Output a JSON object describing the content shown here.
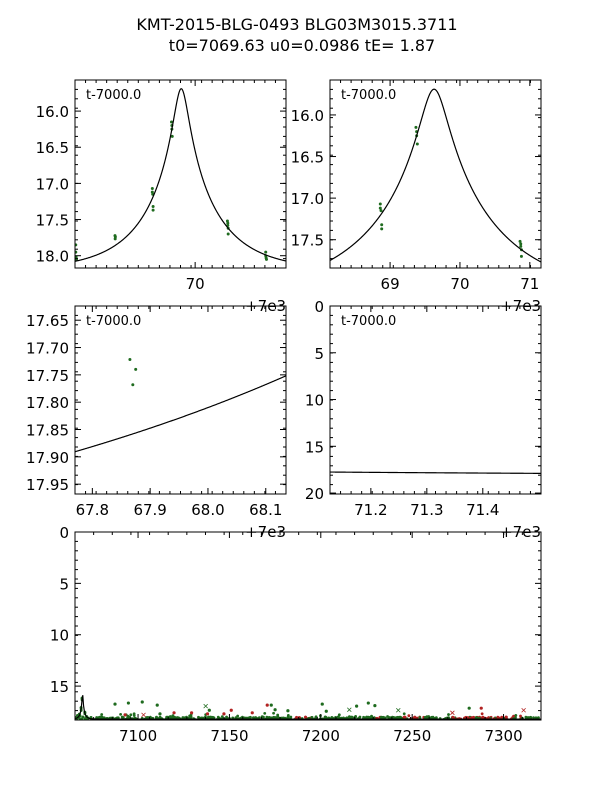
{
  "chart_data": {
    "type": "scatter",
    "title_line1": "KMT-2015-BLG-0493 BLG03M3015.3711",
    "title_line2": "t0=7069.63 u0=0.0986 tE=   1.87",
    "model": {
      "t0_rel": 69.63,
      "u0": 0.0986,
      "tE": 1.87,
      "base_mag": 18.21,
      "fs": 1.0
    },
    "colors": {
      "obs": "#1f6b1f",
      "obs_alt": "#b22222",
      "model": "#000000"
    },
    "panels": [
      {
        "id": "zoom-wide",
        "label": "t-7000.0",
        "offset_text": "+7e3",
        "xlim": [
          66.8,
          72.42
        ],
        "ylim": [
          18.17,
          15.57
        ],
        "xticks": [
          {
            "v": 70,
            "t": "70"
          }
        ],
        "yticks": [
          {
            "v": 16.0,
            "t": "16.0"
          },
          {
            "v": 16.5,
            "t": "16.5"
          },
          {
            "v": 17.0,
            "t": "17.0"
          },
          {
            "v": 17.5,
            "t": "17.5"
          },
          {
            "v": 18.0,
            "t": "18.0"
          }
        ]
      },
      {
        "id": "zoom-peak",
        "label": "t-7000.0",
        "offset_text": "+7e3",
        "xlim": [
          68.14,
          71.16
        ],
        "ylim": [
          17.84,
          15.58
        ],
        "xticks": [
          {
            "v": 69,
            "t": "69"
          },
          {
            "v": 70,
            "t": "70"
          },
          {
            "v": 71,
            "t": "71"
          }
        ],
        "yticks": [
          {
            "v": 16.0,
            "t": "16.0"
          },
          {
            "v": 16.5,
            "t": "16.5"
          },
          {
            "v": 17.0,
            "t": "17.0"
          },
          {
            "v": 17.5,
            "t": "17.5"
          }
        ]
      },
      {
        "id": "zoom-pre",
        "label": "t-7000.0",
        "offset_text": "+7e3",
        "xlim": [
          67.77,
          68.135
        ],
        "ylim": [
          17.968,
          17.624
        ],
        "xticks": [
          {
            "v": 67.8,
            "t": "67.8"
          },
          {
            "v": 67.9,
            "t": "67.9"
          },
          {
            "v": 68.0,
            "t": "68.0"
          },
          {
            "v": 68.1,
            "t": "68.1"
          }
        ],
        "yticks": [
          {
            "v": 17.65,
            "t": "17.65"
          },
          {
            "v": 17.7,
            "t": "17.70"
          },
          {
            "v": 17.75,
            "t": "17.75"
          },
          {
            "v": 17.8,
            "t": "17.80"
          },
          {
            "v": 17.85,
            "t": "17.85"
          },
          {
            "v": 17.9,
            "t": "17.90"
          },
          {
            "v": 17.95,
            "t": "17.95"
          }
        ]
      },
      {
        "id": "zoom-post",
        "label": "t-7000.0",
        "offset_text": "+7e3",
        "xlim": [
          71.127,
          71.504
        ],
        "ylim": [
          20.1,
          0
        ],
        "xticks": [
          {
            "v": 71.2,
            "t": "71.2"
          },
          {
            "v": 71.3,
            "t": "71.3"
          },
          {
            "v": 71.4,
            "t": "71.4"
          }
        ],
        "yticks": [
          {
            "v": 0,
            "t": "0"
          },
          {
            "v": 5,
            "t": "5"
          },
          {
            "v": 10,
            "t": "10"
          },
          {
            "v": 15,
            "t": "15"
          },
          {
            "v": 20,
            "t": "20"
          }
        ]
      },
      {
        "id": "full",
        "label": "",
        "offset_text": "",
        "xlim": [
          7065.5,
          7320.5
        ],
        "ylim": [
          18.3,
          0
        ],
        "t_offset": 7000,
        "xticks": [
          {
            "v": 7100,
            "t": "7100"
          },
          {
            "v": 7150,
            "t": "7150"
          },
          {
            "v": 7200,
            "t": "7200"
          },
          {
            "v": 7250,
            "t": "7250"
          },
          {
            "v": 7300,
            "t": "7300"
          }
        ],
        "yticks": [
          {
            "v": 0,
            "t": "0"
          },
          {
            "v": 5,
            "t": "5"
          },
          {
            "v": 10,
            "t": "10"
          },
          {
            "v": 15,
            "t": "15"
          }
        ]
      }
    ],
    "observations_rel": [
      [
        66.82,
        17.85
      ],
      [
        66.82,
        17.95
      ],
      [
        66.83,
        18.02
      ],
      [
        66.84,
        18.05
      ],
      [
        67.865,
        17.722
      ],
      [
        67.875,
        17.74
      ],
      [
        67.87,
        17.768
      ],
      [
        68.86,
        17.07
      ],
      [
        68.86,
        17.12
      ],
      [
        68.87,
        17.15
      ],
      [
        68.88,
        17.32
      ],
      [
        68.88,
        17.37
      ],
      [
        69.37,
        16.15
      ],
      [
        69.38,
        16.2
      ],
      [
        69.38,
        16.25
      ],
      [
        69.39,
        16.35
      ],
      [
        70.86,
        17.52
      ],
      [
        70.87,
        17.55
      ],
      [
        70.87,
        17.58
      ],
      [
        70.88,
        17.62
      ],
      [
        70.88,
        17.7
      ],
      [
        71.88,
        17.95
      ],
      [
        71.88,
        18.0
      ],
      [
        71.89,
        18.03
      ],
      [
        71.9,
        18.05
      ]
    ],
    "outliers_full": [
      {
        "t": 7087.4,
        "m": 16.75,
        "c": "obs",
        "mk": "dot"
      },
      {
        "t": 7094.7,
        "m": 16.65,
        "c": "obs",
        "mk": "dot"
      },
      {
        "t": 7102.3,
        "m": 16.55,
        "c": "obs",
        "mk": "dot"
      },
      {
        "t": 7110.5,
        "m": 16.85,
        "c": "obs",
        "mk": "dot"
      },
      {
        "t": 7172.9,
        "m": 16.85,
        "c": "obs",
        "mk": "dot"
      },
      {
        "t": 7200.8,
        "m": 16.75,
        "c": "obs",
        "mk": "dot"
      },
      {
        "t": 7219.6,
        "m": 16.95,
        "c": "obs",
        "mk": "dot"
      },
      {
        "t": 7226.0,
        "m": 16.65,
        "c": "obs",
        "mk": "dot"
      },
      {
        "t": 7229.6,
        "m": 16.9,
        "c": "obs",
        "mk": "dot"
      },
      {
        "t": 7281.2,
        "m": 17.15,
        "c": "obs",
        "mk": "dot"
      },
      {
        "t": 7112,
        "m": 17.7,
        "c": "obs",
        "mk": "dot"
      },
      {
        "t": 7139,
        "m": 17.35,
        "c": "obs",
        "mk": "dot"
      },
      {
        "t": 7175,
        "m": 17.3,
        "c": "obs",
        "mk": "dot"
      },
      {
        "t": 7182,
        "m": 17.4,
        "c": "obs",
        "mk": "dot"
      },
      {
        "t": 7203,
        "m": 17.45,
        "c": "obs",
        "mk": "dot"
      },
      {
        "t": 7092.9,
        "m": 17.8,
        "c": "obs_alt",
        "mk": "dot"
      },
      {
        "t": 7119.7,
        "m": 17.6,
        "c": "obs_alt",
        "mk": "dot"
      },
      {
        "t": 7129.3,
        "m": 17.6,
        "c": "obs_alt",
        "mk": "dot"
      },
      {
        "t": 7138,
        "m": 17.7,
        "c": "obs_alt",
        "mk": "dot"
      },
      {
        "t": 7147,
        "m": 17.7,
        "c": "obs_alt",
        "mk": "dot"
      },
      {
        "t": 7151,
        "m": 17.35,
        "c": "obs_alt",
        "mk": "dot"
      },
      {
        "t": 7162.5,
        "m": 17.6,
        "c": "obs_alt",
        "mk": "dot"
      },
      {
        "t": 7170.7,
        "m": 16.85,
        "c": "obs_alt",
        "mk": "dot"
      },
      {
        "t": 7287.8,
        "m": 17.15,
        "c": "obs_alt",
        "mk": "dot"
      },
      {
        "t": 7103,
        "m": 17.8,
        "c": "obs_alt",
        "mk": "x"
      },
      {
        "t": 7272,
        "m": 17.6,
        "c": "obs_alt",
        "mk": "x"
      },
      {
        "t": 7311,
        "m": 17.35,
        "c": "obs_alt",
        "mk": "x"
      },
      {
        "t": 7137,
        "m": 16.95,
        "c": "obs",
        "mk": "x"
      },
      {
        "t": 7215.6,
        "m": 17.3,
        "c": "obs",
        "mk": "x"
      },
      {
        "t": 7242.4,
        "m": 17.35,
        "c": "obs",
        "mk": "x"
      }
    ],
    "baseline_full": {
      "t_range": [
        7066,
        7320
      ],
      "mag": 18.1,
      "scatter": 0.25,
      "count": 700,
      "alt_ranges": [
        [
          7185,
          7195
        ],
        [
          7229,
          7233
        ],
        [
          7245,
          7257
        ],
        [
          7272,
          7310
        ]
      ]
    }
  }
}
